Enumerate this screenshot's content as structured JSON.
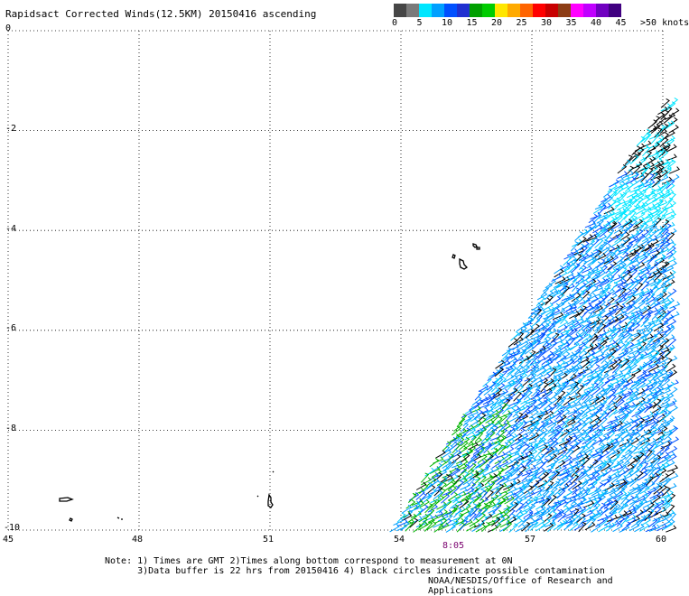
{
  "title": "Rapidsact Corrected Winds(12.5KM) 20150416 ascending",
  "legend": {
    "colors": [
      "#464646",
      "#7a7a7a",
      "#00e6ff",
      "#00a0ff",
      "#0050ff",
      "#2030d0",
      "#00a000",
      "#00cc00",
      "#ffe600",
      "#ffaa00",
      "#ff6400",
      "#ff0000",
      "#c80000",
      "#8c3c14",
      "#ff00ff",
      "#c000ff",
      "#7000c0",
      "#400080"
    ],
    "labels": [
      "0",
      "5",
      "10",
      "15",
      "20",
      "25",
      "30",
      "35",
      "40",
      "45",
      ">50 knots"
    ]
  },
  "axes": {
    "lat_labels": [
      "0",
      "-2",
      "-4",
      "-6",
      "-8",
      "-10"
    ],
    "lon_labels": [
      "45",
      "48",
      "51",
      "54",
      "57",
      "60"
    ]
  },
  "time_label": "8:05",
  "notes": {
    "line1": "Note: 1) Times are GMT 2)Times along bottom correspond to measurement at 0N",
    "line2": "      3)Data buffer is 22 hrs from 20150416 4) Black circles indicate possible contamination"
  },
  "credit": "NOAA/NESDIS/Office of Research and Applications"
}
